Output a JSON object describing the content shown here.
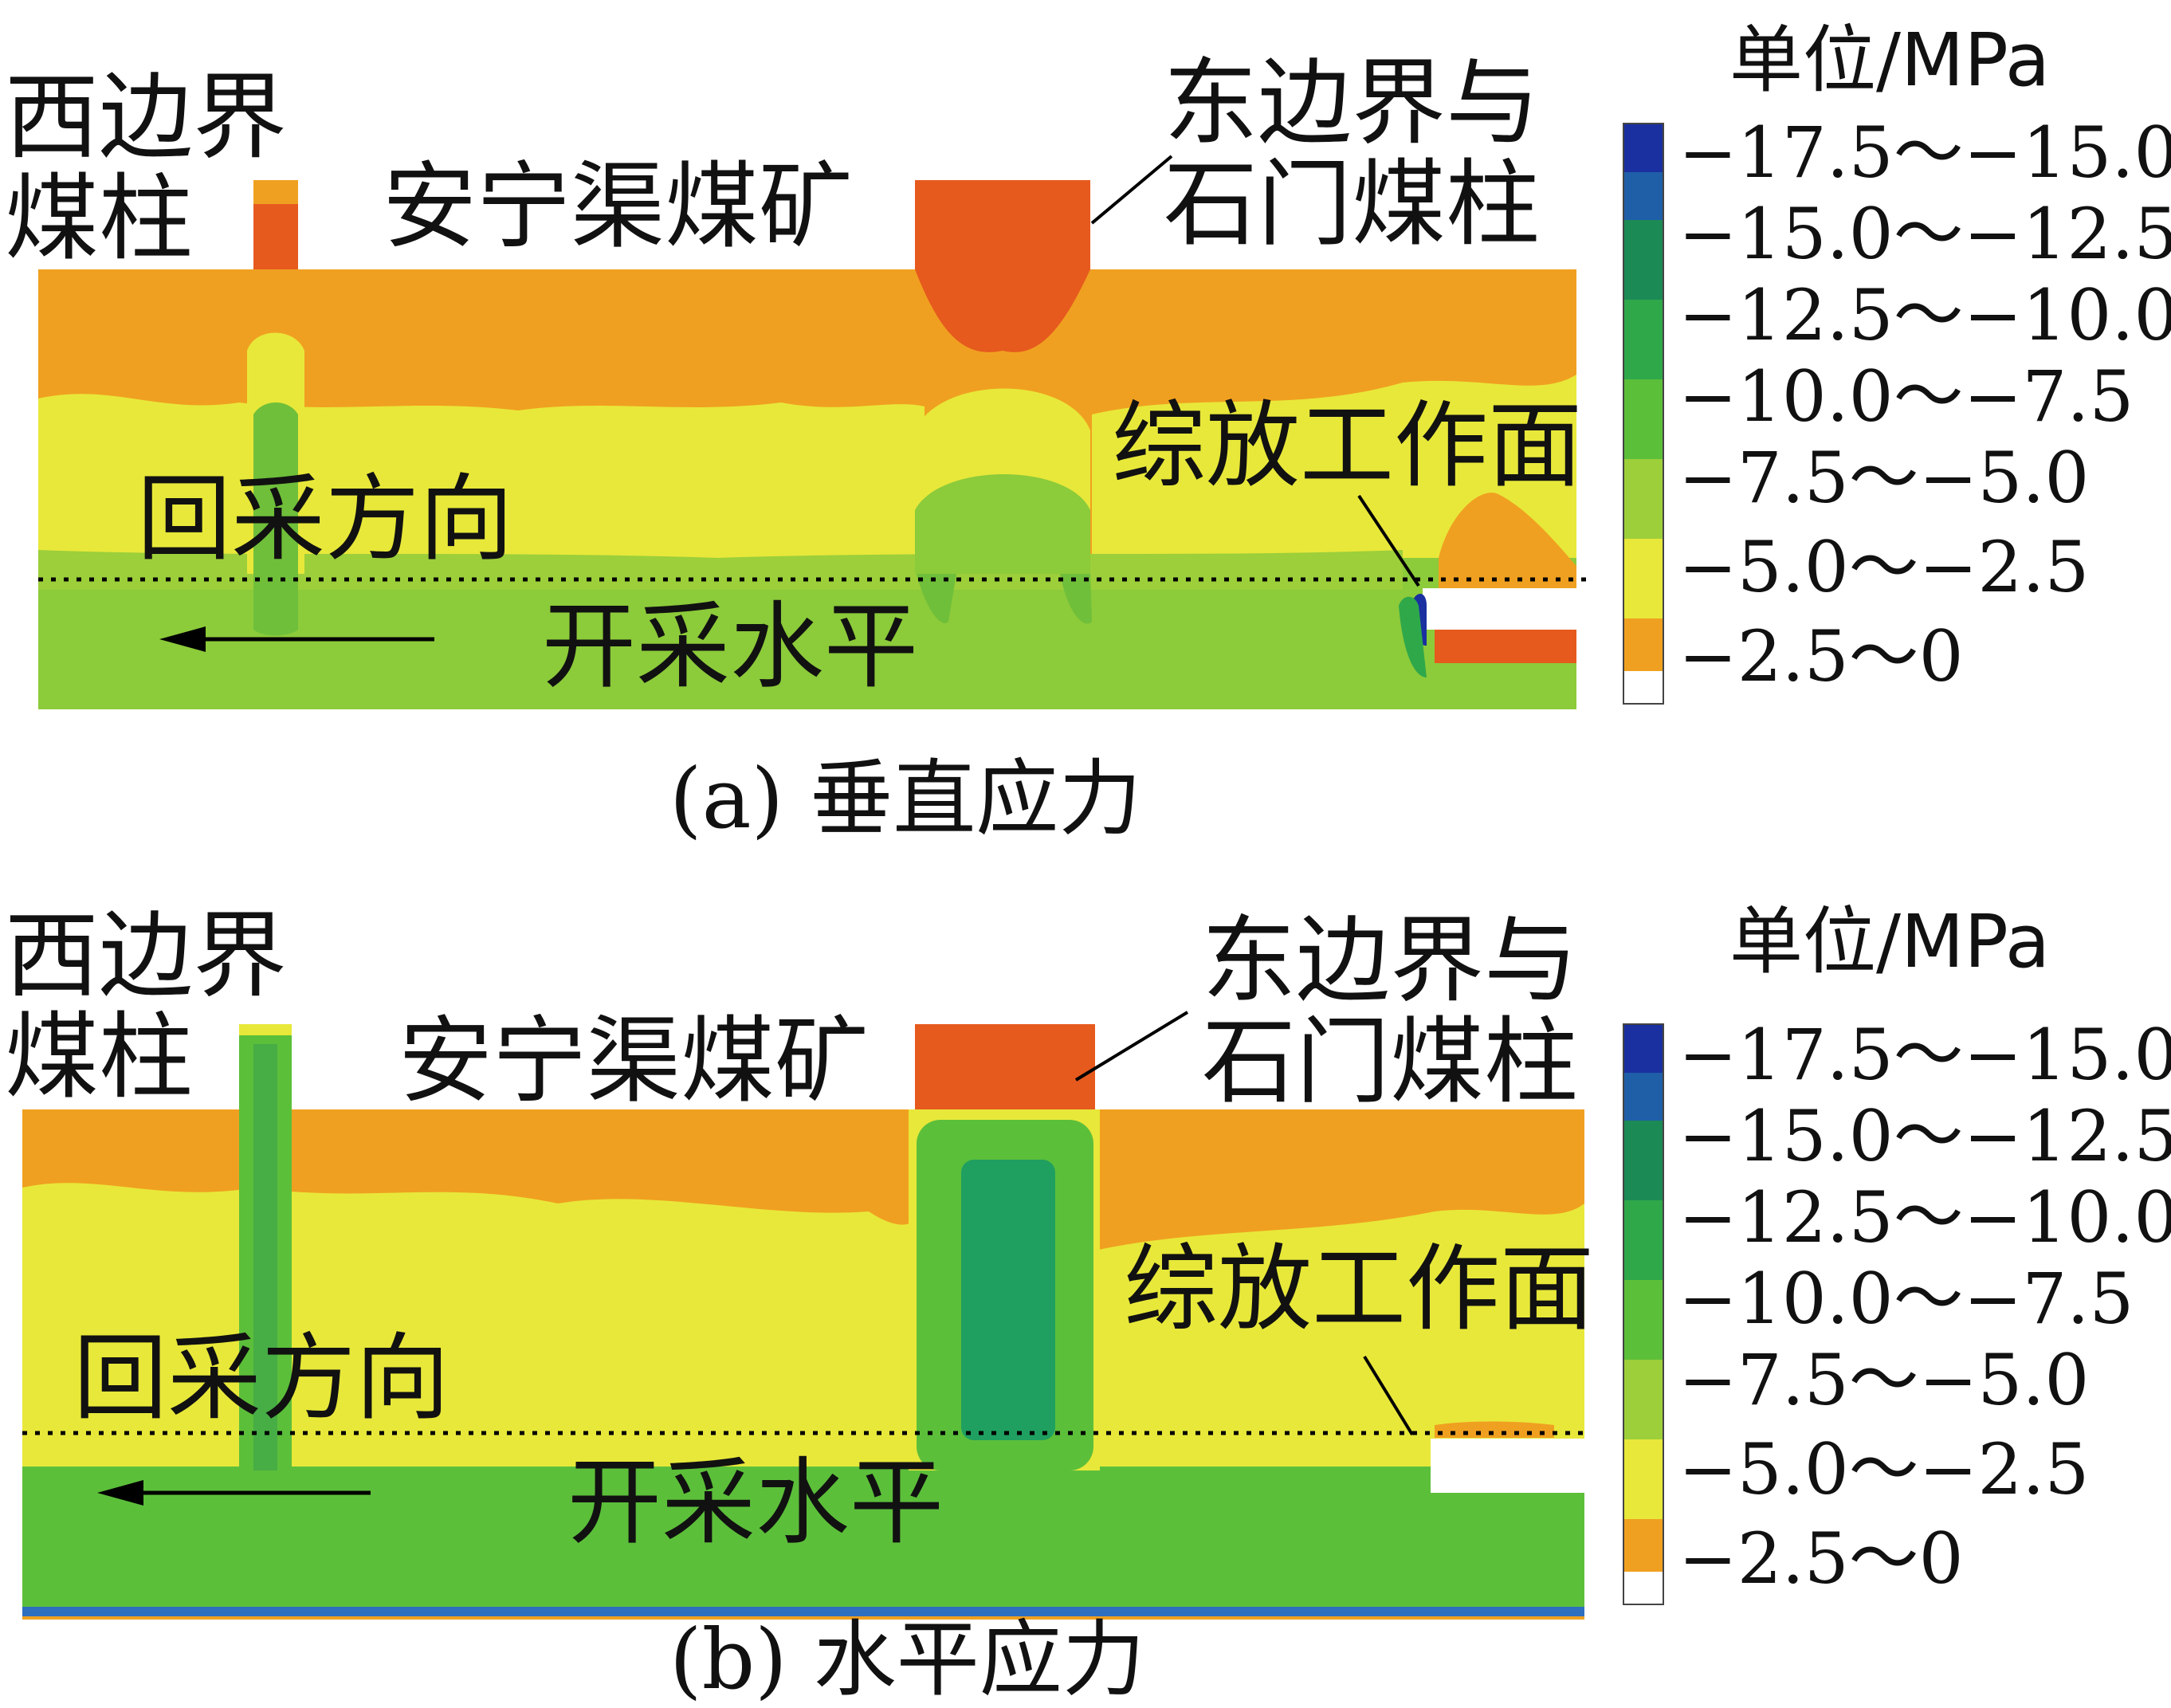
{
  "legend": {
    "unit": "单位/MPa",
    "ranges": [
      "−17.5～−15.0",
      "−15.0～−12.5",
      "−12.5～−10.0",
      "−10.0～−7.5",
      "−7.5～−5.0",
      "−5.0～−2.5",
      "−2.5～0"
    ],
    "colors": [
      "#1a2fa0",
      "#1c8a55",
      "#2fa84a",
      "#5cbf3a",
      "#9ccf3a",
      "#e8e83a",
      "#f0a020",
      "#e65a1e"
    ]
  },
  "panel_a": {
    "caption": "(a)  垂直应力",
    "west_pillar": "西边界\n煤柱",
    "mine": "安宁渠煤矿",
    "east_pillar": "东边界与\n石门煤柱",
    "face": "综放工作面",
    "direction": "回采方向",
    "level": "开采水平"
  },
  "panel_b": {
    "caption": "(b)  水平应力",
    "west_pillar": "西边界\n煤柱",
    "mine": "安宁渠煤矿",
    "east_pillar": "东边界与\n石门煤柱",
    "face": "综放工作面",
    "direction": "回采方向",
    "level": "开采水平"
  }
}
